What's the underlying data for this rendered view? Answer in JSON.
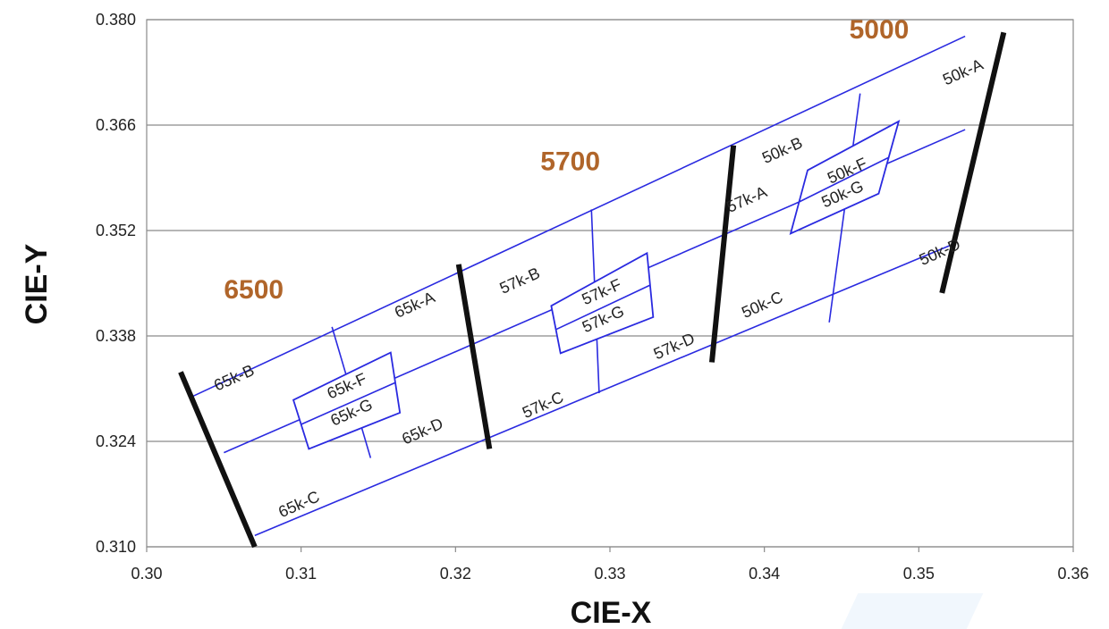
{
  "chart_data": {
    "type": "diagram",
    "xlabel": "CIE-X",
    "ylabel": "CIE-Y",
    "xlim": [
      0.3,
      0.36
    ],
    "ylim": [
      0.31,
      0.38
    ],
    "x_ticks": [
      "0.30",
      "0.31",
      "0.32",
      "0.33",
      "0.34",
      "0.35",
      "0.36"
    ],
    "y_ticks": [
      "0.310",
      "0.324",
      "0.338",
      "0.352",
      "0.366",
      "0.380"
    ],
    "grid": "horizontal",
    "colors": {
      "bins": "#2a2ae0",
      "boundary": "#111111",
      "cct_label": "#b0652a",
      "grid": "#8a8a8a"
    },
    "cct_labels": [
      {
        "text": "6500",
        "x": 0.305,
        "y": 0.343
      },
      {
        "text": "5700",
        "x": 0.3255,
        "y": 0.36
      },
      {
        "text": "5000",
        "x": 0.3455,
        "y": 0.3775
      }
    ],
    "boundary_lines": [
      {
        "x": [
          0.3022,
          0.307
        ],
        "y": [
          0.3332,
          0.31
        ]
      },
      {
        "x": [
          0.3202,
          0.3222
        ],
        "y": [
          0.3475,
          0.323
        ]
      },
      {
        "x": [
          0.338,
          0.3366
        ],
        "y": [
          0.3633,
          0.3345
        ]
      },
      {
        "x": [
          0.3555,
          0.3515
        ],
        "y": [
          0.3783,
          0.3437
        ]
      }
    ],
    "bin_lines": [
      {
        "name": "upper",
        "x": [
          0.303,
          0.353
        ],
        "y": [
          0.33,
          0.3778
        ]
      },
      {
        "name": "center",
        "x": [
          0.305,
          0.353
        ],
        "y": [
          0.3225,
          0.3654
        ]
      },
      {
        "name": "lower",
        "x": [
          0.307,
          0.352
        ],
        "y": [
          0.3115,
          0.35
        ]
      },
      {
        "name": "div-65",
        "x": [
          0.312,
          0.3145
        ],
        "y": [
          0.3392,
          0.3218
        ]
      },
      {
        "name": "div-57",
        "x": [
          0.3288,
          0.3293
        ],
        "y": [
          0.3548,
          0.3304
        ]
      },
      {
        "name": "div-50",
        "x": [
          0.3462,
          0.3442
        ],
        "y": [
          0.3702,
          0.3398
        ]
      }
    ],
    "bin_boxes": [
      {
        "name": "65k-F/G",
        "x": [
          0.3095,
          0.3158,
          0.3164,
          0.3105
        ],
        "y": [
          0.3295,
          0.3358,
          0.3278,
          0.323
        ]
      },
      {
        "name": "57k-F/G",
        "x": [
          0.3262,
          0.3324,
          0.3328,
          0.3268
        ],
        "y": [
          0.342,
          0.349,
          0.3405,
          0.3357
        ]
      },
      {
        "name": "50k-F/G",
        "x": [
          0.3428,
          0.3487,
          0.3474,
          0.3417
        ],
        "y": [
          0.36,
          0.3665,
          0.3569,
          0.3516
        ]
      }
    ],
    "bin_labels": [
      {
        "text": "65k-B",
        "x": 0.3058,
        "y": 0.3318
      },
      {
        "text": "65k-A",
        "x": 0.3175,
        "y": 0.3415
      },
      {
        "text": "65k-F",
        "x": 0.3131,
        "y": 0.3307
      },
      {
        "text": "65k-G",
        "x": 0.3134,
        "y": 0.3272
      },
      {
        "text": "65k-C",
        "x": 0.31,
        "y": 0.315
      },
      {
        "text": "65k-D",
        "x": 0.318,
        "y": 0.3247
      },
      {
        "text": "57k-B",
        "x": 0.3243,
        "y": 0.3447
      },
      {
        "text": "57k-A",
        "x": 0.339,
        "y": 0.3555
      },
      {
        "text": "57k-F",
        "x": 0.3296,
        "y": 0.3432
      },
      {
        "text": "57k-G",
        "x": 0.3297,
        "y": 0.3396
      },
      {
        "text": "57k-C",
        "x": 0.3258,
        "y": 0.3282
      },
      {
        "text": "57k-D",
        "x": 0.3343,
        "y": 0.336
      },
      {
        "text": "50k-B",
        "x": 0.3413,
        "y": 0.362
      },
      {
        "text": "50k-A",
        "x": 0.353,
        "y": 0.3724
      },
      {
        "text": "50k-F",
        "x": 0.3455,
        "y": 0.3593
      },
      {
        "text": "50k-G",
        "x": 0.3452,
        "y": 0.3562
      },
      {
        "text": "50k-C",
        "x": 0.34,
        "y": 0.3415
      },
      {
        "text": "50k-D",
        "x": 0.3515,
        "y": 0.3485
      }
    ]
  }
}
